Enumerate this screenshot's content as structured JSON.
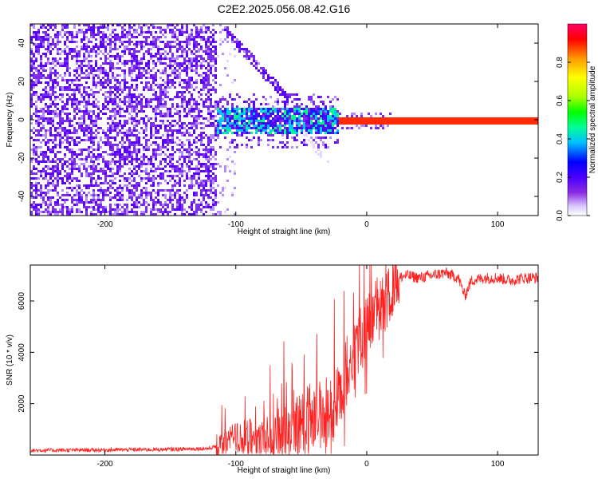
{
  "figure": {
    "title": "C2E2.2025.056.08.42.G16"
  },
  "chart_data": [
    {
      "type": "heatmap",
      "title": "C2E2.2025.056.08.42.G16",
      "xlabel": "Height of straight line (km)",
      "ylabel": "Frequency (Hz)",
      "xlim": [
        -257,
        131
      ],
      "ylim": [
        -50,
        50
      ],
      "xticks": [
        -200,
        -100,
        0,
        100
      ],
      "yticks": [
        -40,
        -20,
        0,
        20,
        40
      ],
      "colorbar": {
        "label": "Normalized spectral amplitude",
        "range": [
          0.0,
          1.0
        ],
        "ticks": [
          0.0,
          0.2,
          0.4,
          0.6,
          0.8
        ],
        "colormap": [
          "#ffffff",
          "#d9c6ff",
          "#8a2be2",
          "#6600ff",
          "#0000ff",
          "#00bfff",
          "#00ff99",
          "#00ff00",
          "#aaff00",
          "#ffff00",
          "#ff9900",
          "#ff0000",
          "#ff0066"
        ]
      },
      "regions": [
        {
          "description_only": true,
          "x": [
            -257,
            -115
          ],
          "y": [
            -50,
            50
          ],
          "amplitude": 0.12
        },
        {
          "x": [
            -115,
            -22
          ],
          "y": [
            -10,
            10
          ],
          "amplitude": 0.3
        },
        {
          "x": [
            -22,
            131
          ],
          "y": [
            -1,
            1
          ],
          "amplitude": 0.95
        }
      ]
    },
    {
      "type": "line",
      "xlabel": "Height of straight line (km)",
      "ylabel": "SNR (10 * v/v)",
      "xlim": [
        -257,
        131
      ],
      "ylim": [
        0,
        7400
      ],
      "xticks": [
        -200,
        -100,
        0,
        100
      ],
      "yticks": [
        2000,
        4000,
        6000
      ],
      "color": "#ff2020",
      "series": [
        {
          "x": [
            -257,
            -200,
            -150,
            -120,
            -110,
            -100,
            -90,
            -80,
            -70,
            -60,
            -50,
            -40,
            -30,
            -25,
            -20,
            -15,
            -10,
            -5,
            0,
            5,
            10,
            15,
            20,
            25,
            30,
            40,
            50,
            60,
            70,
            75,
            80,
            90,
            100,
            110,
            120,
            131
          ],
          "y": [
            180,
            200,
            220,
            260,
            420,
            650,
            700,
            650,
            800,
            950,
            1200,
            1500,
            1700,
            1650,
            2500,
            3200,
            3500,
            4600,
            5000,
            5600,
            6000,
            5900,
            6600,
            6900,
            7000,
            6900,
            7000,
            7100,
            6900,
            6200,
            6800,
            6900,
            6900,
            6800,
            6900,
            6900
          ]
        }
      ]
    }
  ]
}
